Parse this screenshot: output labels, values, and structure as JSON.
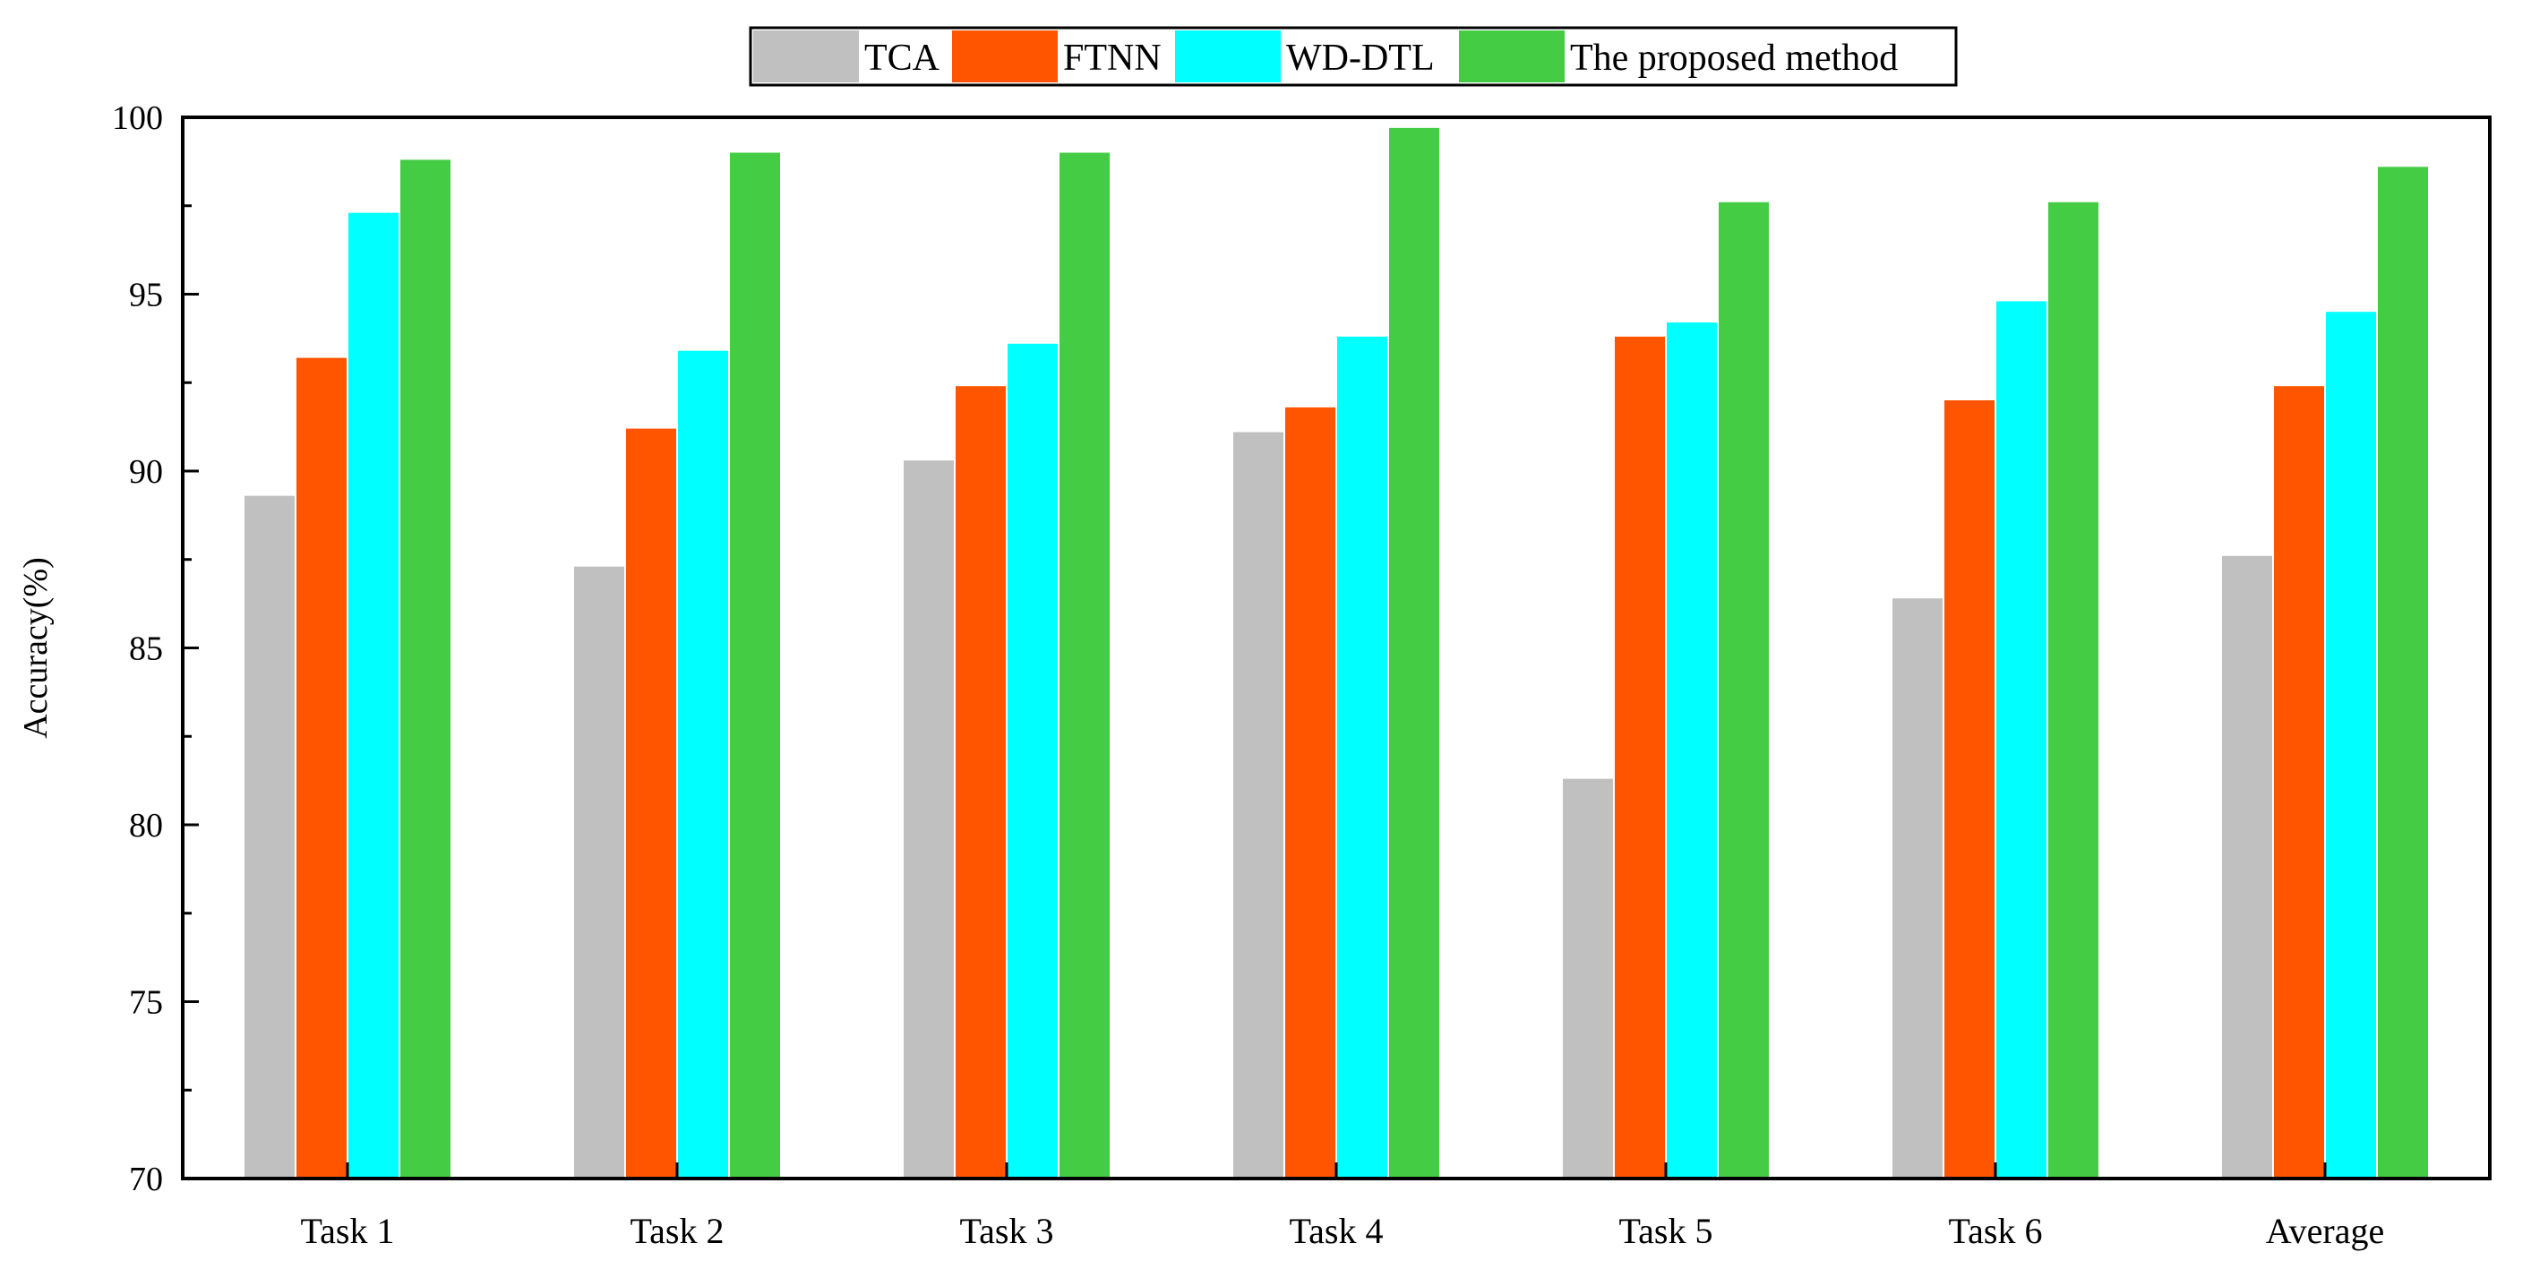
{
  "chart_data": {
    "type": "bar",
    "title": "",
    "xlabel": "",
    "ylabel": "Accuracy(%)",
    "categories": [
      "Task 1",
      "Task 2",
      "Task 3",
      "Task 4",
      "Task 5",
      "Task 6",
      "Average"
    ],
    "ylim": [
      70,
      100
    ],
    "yticks": [
      "70",
      "75",
      "80",
      "85",
      "90",
      "95",
      "100"
    ],
    "grid": false,
    "legend_position": "top-center",
    "series": [
      {
        "name": "TCA",
        "color": "#c0c0c0",
        "values": [
          89.3,
          87.3,
          90.3,
          91.1,
          81.3,
          86.4,
          87.6
        ]
      },
      {
        "name": "FTNN",
        "color": "#ff5500",
        "values": [
          93.2,
          91.2,
          92.4,
          91.8,
          93.8,
          92.0,
          92.4
        ]
      },
      {
        "name": "WD-DTL",
        "color": "#00ffff",
        "values": [
          97.3,
          93.4,
          93.6,
          93.8,
          94.2,
          94.8,
          94.5
        ]
      },
      {
        "name": "The proposed method",
        "color": "#44cc44",
        "values": [
          98.8,
          99.0,
          99.0,
          99.7,
          97.6,
          97.6,
          98.6
        ]
      }
    ]
  }
}
